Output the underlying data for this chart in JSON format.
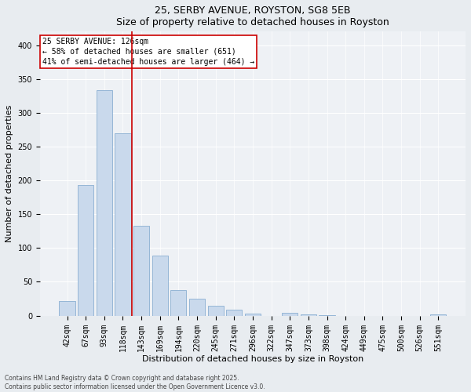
{
  "title": "25, SERBY AVENUE, ROYSTON, SG8 5EB",
  "subtitle": "Size of property relative to detached houses in Royston",
  "xlabel": "Distribution of detached houses by size in Royston",
  "ylabel": "Number of detached properties",
  "categories": [
    "42sqm",
    "67sqm",
    "93sqm",
    "118sqm",
    "143sqm",
    "169sqm",
    "194sqm",
    "220sqm",
    "245sqm",
    "271sqm",
    "296sqm",
    "322sqm",
    "347sqm",
    "373sqm",
    "398sqm",
    "424sqm",
    "449sqm",
    "475sqm",
    "500sqm",
    "526sqm",
    "551sqm"
  ],
  "values": [
    22,
    193,
    333,
    270,
    133,
    89,
    38,
    25,
    14,
    9,
    3,
    0,
    4,
    2,
    1,
    0,
    0,
    0,
    0,
    0,
    2
  ],
  "bar_color": "#c9d9ec",
  "bar_edgecolor": "#7aa4cc",
  "vline_x": 3.5,
  "vline_color": "#cc0000",
  "annotation_title": "25 SERBY AVENUE: 126sqm",
  "annotation_line1": "← 58% of detached houses are smaller (651)",
  "annotation_line2": "41% of semi-detached houses are larger (464) →",
  "annotation_box_color": "#cc0000",
  "ylim": [
    0,
    420
  ],
  "yticks": [
    0,
    50,
    100,
    150,
    200,
    250,
    300,
    350,
    400
  ],
  "footer1": "Contains HM Land Registry data © Crown copyright and database right 2025.",
  "footer2": "Contains public sector information licensed under the Open Government Licence v3.0.",
  "bg_color": "#e8ecf0",
  "plot_bg_color": "#eef1f5",
  "title_fontsize": 9,
  "subtitle_fontsize": 8,
  "ylabel_fontsize": 8,
  "xlabel_fontsize": 8,
  "tick_fontsize": 7,
  "ann_fontsize": 7,
  "footer_fontsize": 5.5
}
